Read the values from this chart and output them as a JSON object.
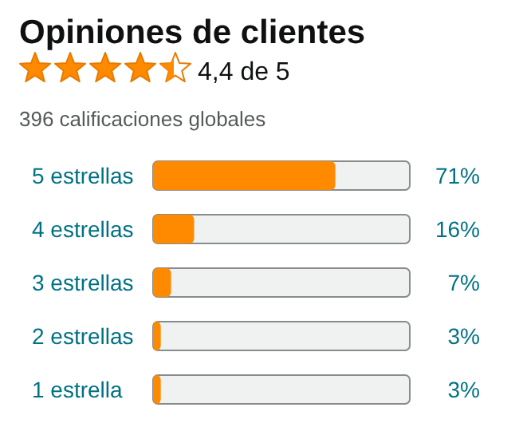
{
  "chart_data": {
    "type": "bar",
    "orientation": "horizontal",
    "title": "Opiniones de clientes",
    "subtitle": "4,4 de 5",
    "annotations": [
      "396 calificaciones globales"
    ],
    "categories": [
      "5 estrellas",
      "4 estrellas",
      "3 estrellas",
      "2 estrellas",
      "1 estrella"
    ],
    "values": [
      71,
      16,
      7,
      3,
      3
    ],
    "value_labels": [
      "71%",
      "16%",
      "7%",
      "3%",
      "3%"
    ],
    "color": "#ff8a00",
    "xlim": [
      0,
      100
    ]
  }
}
